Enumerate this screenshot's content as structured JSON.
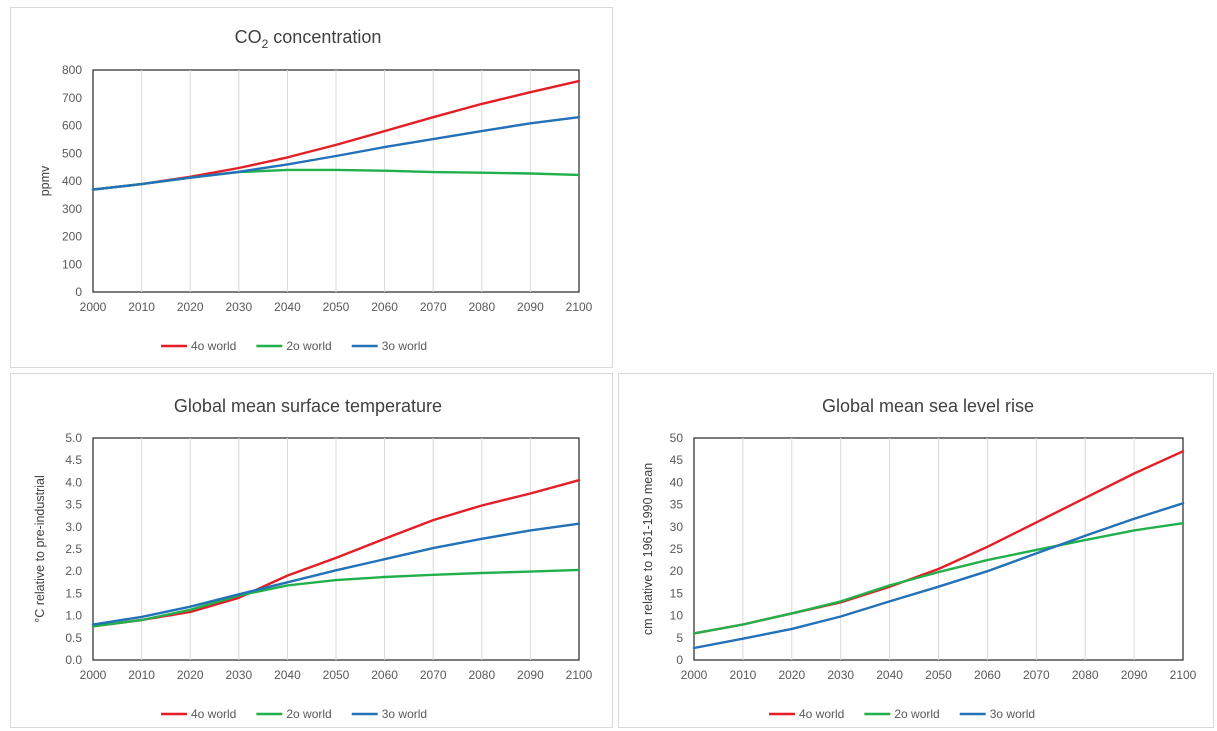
{
  "chart_data": [
    {
      "type": "line",
      "title": "CO",
      "title_sub": "2",
      "title_rest": " concentration",
      "xlabel": "",
      "ylabel": "ppmv",
      "xlim": [
        2000,
        2100
      ],
      "ylim": [
        0,
        800
      ],
      "x_ticks": [
        2000,
        2010,
        2020,
        2030,
        2040,
        2050,
        2060,
        2070,
        2080,
        2090,
        2100
      ],
      "y_ticks": [
        "0",
        "100",
        "200",
        "300",
        "400",
        "500",
        "600",
        "700",
        "800"
      ],
      "grid": "vertical",
      "legend": "bottom",
      "x": [
        2000,
        2010,
        2020,
        2030,
        2040,
        2050,
        2060,
        2070,
        2080,
        2090,
        2100
      ],
      "series": [
        {
          "name": "4o world",
          "color": "#e41e26",
          "values": [
            369,
            389,
            415,
            447,
            485,
            530,
            580,
            630,
            678,
            720,
            760
          ]
        },
        {
          "name": "2o world",
          "color": "#21b04b",
          "values": [
            369,
            389,
            412,
            432,
            440,
            440,
            437,
            432,
            430,
            427,
            422
          ]
        },
        {
          "name": "3o world",
          "color": "#2371b8",
          "values": [
            369,
            389,
            412,
            433,
            460,
            490,
            522,
            551,
            580,
            608,
            630
          ]
        }
      ]
    },
    {
      "type": "line",
      "title": "Global mean surface temperature",
      "xlabel": "",
      "ylabel": "°C relative to pre-industrial",
      "xlim": [
        2000,
        2100
      ],
      "ylim": [
        0,
        5
      ],
      "x_ticks": [
        2000,
        2010,
        2020,
        2030,
        2040,
        2050,
        2060,
        2070,
        2080,
        2090,
        2100
      ],
      "y_ticks": [
        "0.0",
        "0.5",
        "1.0",
        "1.5",
        "2.0",
        "2.5",
        "3.0",
        "3.5",
        "4.0",
        "4.5",
        "5.0"
      ],
      "grid": "vertical",
      "legend": "bottom",
      "x": [
        2000,
        2010,
        2020,
        2030,
        2040,
        2050,
        2060,
        2070,
        2080,
        2090,
        2100
      ],
      "series": [
        {
          "name": "4o world",
          "color": "#e41e26",
          "values": [
            0.76,
            0.9,
            1.08,
            1.4,
            1.9,
            2.3,
            2.73,
            3.15,
            3.48,
            3.75,
            4.05
          ]
        },
        {
          "name": "2o world",
          "color": "#21b04b",
          "values": [
            0.76,
            0.9,
            1.13,
            1.45,
            1.68,
            1.8,
            1.87,
            1.92,
            1.96,
            1.99,
            2.03
          ]
        },
        {
          "name": "3o world",
          "color": "#2371b8",
          "values": [
            0.8,
            0.97,
            1.2,
            1.48,
            1.75,
            2.02,
            2.27,
            2.52,
            2.73,
            2.92,
            3.07
          ]
        }
      ]
    },
    {
      "type": "line",
      "title": "Global mean sea level rise",
      "xlabel": "",
      "ylabel": "cm relative to 1961-1990 mean",
      "xlim": [
        2000,
        2100
      ],
      "ylim": [
        0,
        50
      ],
      "x_ticks": [
        2000,
        2010,
        2020,
        2030,
        2040,
        2050,
        2060,
        2070,
        2080,
        2090,
        2100
      ],
      "y_ticks": [
        "0",
        "5",
        "10",
        "15",
        "20",
        "25",
        "30",
        "35",
        "40",
        "45",
        "50"
      ],
      "grid": "vertical",
      "legend": "bottom",
      "x": [
        2000,
        2010,
        2020,
        2030,
        2040,
        2050,
        2060,
        2070,
        2080,
        2090,
        2100
      ],
      "series": [
        {
          "name": "4o world",
          "color": "#e41e26",
          "values": [
            6.0,
            8.0,
            10.5,
            13.0,
            16.5,
            20.5,
            25.5,
            31.0,
            36.5,
            42.0,
            47.0
          ]
        },
        {
          "name": "2o world",
          "color": "#21b04b",
          "values": [
            6.0,
            8.0,
            10.5,
            13.2,
            16.8,
            19.8,
            22.5,
            24.8,
            27.0,
            29.2,
            30.8
          ]
        },
        {
          "name": "3o world",
          "color": "#2371b8",
          "values": [
            2.7,
            4.8,
            7.0,
            9.8,
            13.2,
            16.5,
            20.0,
            24.0,
            28.0,
            31.8,
            35.3
          ]
        }
      ]
    }
  ]
}
